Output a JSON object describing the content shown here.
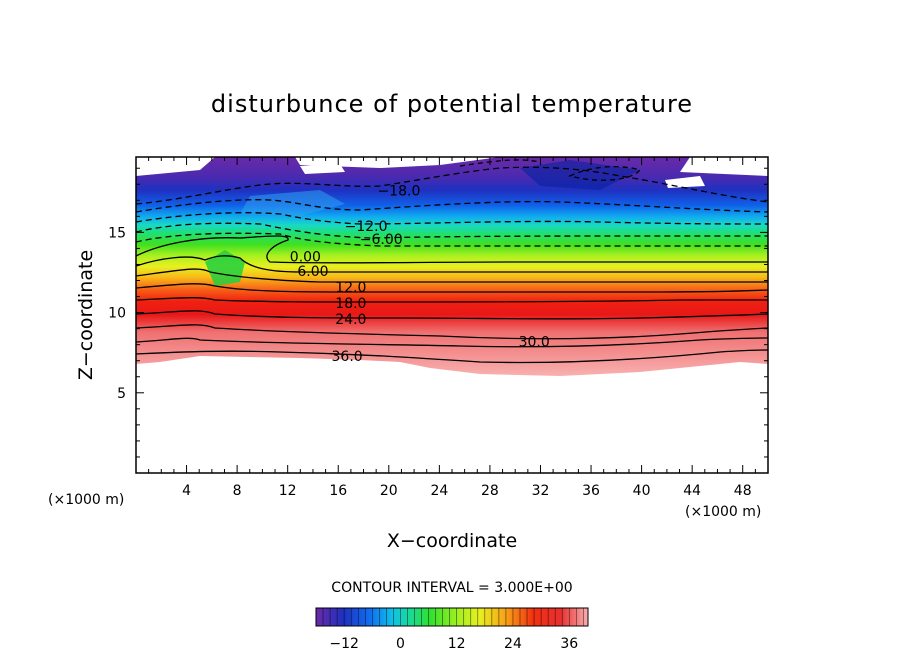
{
  "chart_data": {
    "type": "heatmap",
    "title": "disturbunce of potential temperature",
    "xlabel": "X−coordinate",
    "ylabel": "Z−coordinate",
    "x_unit": "(×1000 m)",
    "z_unit": "(×1000 m)",
    "xlim": [
      0,
      50
    ],
    "ylim": [
      0,
      19.7
    ],
    "x_ticks": [
      4,
      8,
      12,
      16,
      20,
      24,
      28,
      32,
      36,
      40,
      44,
      48
    ],
    "y_ticks": [
      5,
      10,
      15
    ],
    "contour_interval": "CONTOUR INTERVAL = 3.000E+00",
    "contour_labels": [
      {
        "text": "−18.0",
        "x": 20.8,
        "z": 17.6
      },
      {
        "text": "−12.0",
        "x": 18.2,
        "z": 15.4
      },
      {
        "text": "−6.00",
        "x": 19.4,
        "z": 14.6
      },
      {
        "text": "0.00",
        "x": 13.4,
        "z": 13.5
      },
      {
        "text": "6.00",
        "x": 14.0,
        "z": 12.6
      },
      {
        "text": "12.0",
        "x": 17.0,
        "z": 11.6
      },
      {
        "text": "18.0",
        "x": 17.0,
        "z": 10.6
      },
      {
        "text": "24.0",
        "x": 17.0,
        "z": 9.6
      },
      {
        "text": "30.0",
        "x": 31.5,
        "z": 8.2
      },
      {
        "text": "36.0",
        "x": 16.7,
        "z": 7.3
      }
    ],
    "colorbar": {
      "min": -18,
      "max": 40,
      "ticks": [
        "−12",
        "0",
        "12",
        "24",
        "36"
      ],
      "tick_values": [
        -12,
        0,
        12,
        24,
        36
      ]
    }
  }
}
